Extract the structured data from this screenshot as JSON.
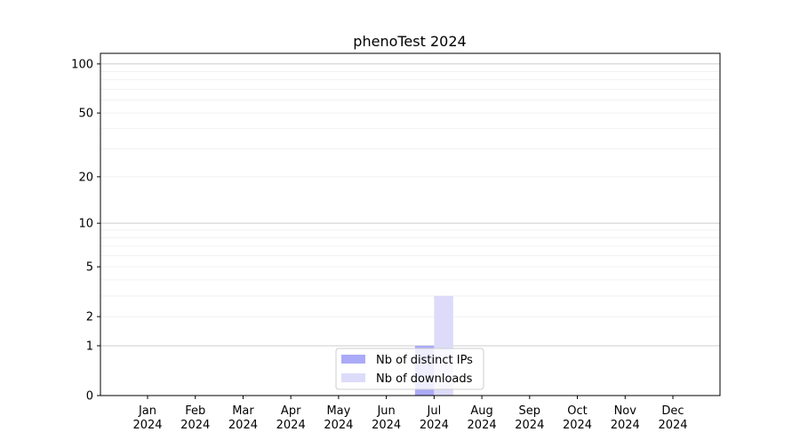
{
  "chart_data": {
    "type": "bar",
    "title": "phenoTest 2024",
    "xlabel": "",
    "ylabel": "",
    "yscale": "symlog (log10(v+1))",
    "ylim": [
      0,
      116
    ],
    "categories": [
      "Jan\n2024",
      "Feb\n2024",
      "Mar\n2024",
      "Apr\n2024",
      "May\n2024",
      "Jun\n2024",
      "Jul\n2024",
      "Aug\n2024",
      "Sep\n2024",
      "Oct\n2024",
      "Nov\n2024",
      "Dec\n2024"
    ],
    "yticks": [
      0,
      1,
      2,
      5,
      10,
      20,
      50,
      100
    ],
    "grid": true,
    "legend": "lower-center",
    "series": [
      {
        "name": "Nb of distinct IPs",
        "color": "#aaaaf8",
        "values": [
          0,
          0,
          0,
          0,
          0,
          0,
          1,
          0,
          0,
          0,
          0,
          0
        ]
      },
      {
        "name": "Nb of downloads",
        "color": "#dcdcfa",
        "values": [
          0,
          0,
          0,
          0,
          0,
          0,
          3,
          0,
          0,
          0,
          0,
          0
        ]
      }
    ]
  }
}
